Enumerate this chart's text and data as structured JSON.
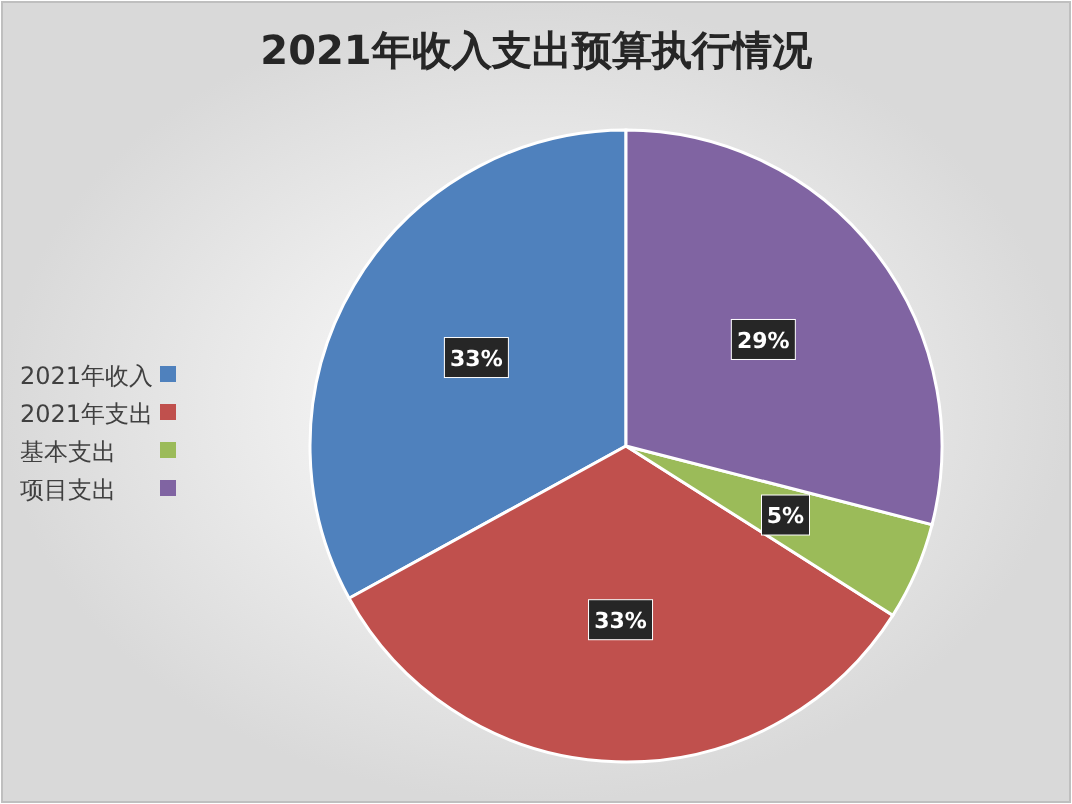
{
  "chart_data": {
    "type": "pie",
    "title": "2021年收入支出预算执行情况",
    "categories": [
      "2021年收入",
      "2021年支出",
      "基本支出",
      "项目支出"
    ],
    "values": [
      33,
      33,
      5,
      29
    ],
    "colors": [
      "#4f81bd",
      "#c0504d",
      "#9bbb59",
      "#8064a2"
    ],
    "value_labels": [
      "33%",
      "33%",
      "5%",
      "29%"
    ],
    "legend": "left"
  }
}
